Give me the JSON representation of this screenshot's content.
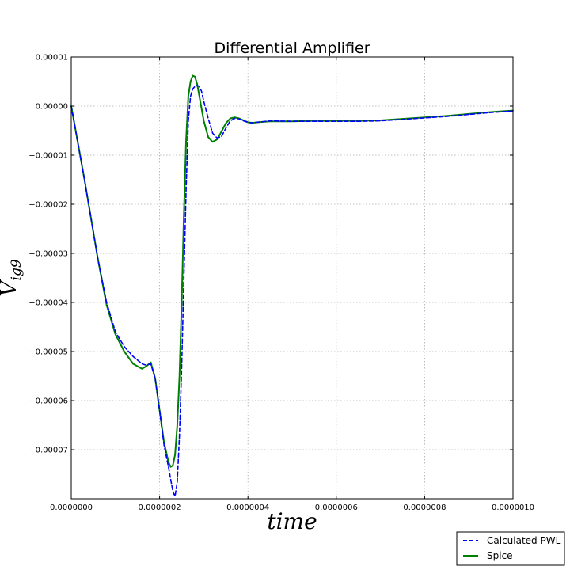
{
  "chart_data": {
    "type": "line",
    "title": "Differential Amplifier",
    "xlabel": "time",
    "ylabel_main": "V",
    "ylabel_sub": "ig9",
    "xlim": [
      0,
      1e-06
    ],
    "ylim": [
      -8e-05,
      1e-05
    ],
    "x_ticks": [
      0,
      2e-07,
      4e-07,
      6e-07,
      8e-07,
      1e-06
    ],
    "x_tick_labels": [
      "0.0000000",
      "0.0000002",
      "0.0000004",
      "0.0000006",
      "0.0000008",
      "0.0000010"
    ],
    "y_ticks": [
      1e-05,
      0,
      -1e-05,
      -2e-05,
      -3e-05,
      -4e-05,
      -5e-05,
      -6e-05,
      -7e-05
    ],
    "y_tick_labels": [
      "0.00001",
      "0.00000",
      "−0.00001",
      "−0.00002",
      "−0.00003",
      "−0.00004",
      "−0.00005",
      "−0.00006",
      "−0.00007"
    ],
    "grid": true,
    "legend_position": "below-right",
    "series": [
      {
        "name": "Calculated PWL",
        "color": "#0000ff",
        "style": "dashed",
        "x": [
          0,
          3e-08,
          6e-08,
          8e-08,
          1e-07,
          1.2e-07,
          1.4e-07,
          1.6e-07,
          1.7e-07,
          1.8e-07,
          1.9e-07,
          2e-07,
          2.1e-07,
          2.2e-07,
          2.25e-07,
          2.3e-07,
          2.35e-07,
          2.4e-07,
          2.45e-07,
          2.5e-07,
          2.55e-07,
          2.6e-07,
          2.65e-07,
          2.7e-07,
          2.75e-07,
          2.8e-07,
          2.85e-07,
          2.9e-07,
          2.95e-07,
          3e-07,
          3.1e-07,
          3.2e-07,
          3.3e-07,
          3.4e-07,
          3.5e-07,
          3.6e-07,
          3.7e-07,
          3.8e-07,
          3.9e-07,
          4e-07,
          4.1e-07,
          4.2e-07,
          4.5e-07,
          5e-07,
          5.5e-07,
          6e-07,
          6.5e-07,
          7e-07,
          7.5e-07,
          8e-07,
          8.5e-07,
          9e-07,
          9.5e-07,
          1e-06
        ],
        "y": [
          0,
          -1.5e-05,
          -3.1e-05,
          -4e-05,
          -4.6e-05,
          -4.9e-05,
          -5.1e-05,
          -5.25e-05,
          -5.28e-05,
          -5.25e-05,
          -5.55e-05,
          -6.2e-05,
          -6.9e-05,
          -7.35e-05,
          -7.6e-05,
          -7.85e-05,
          -7.95e-05,
          -7.65e-05,
          -6.7e-05,
          -5.3e-05,
          -3.5e-05,
          -1.7e-05,
          -3e-06,
          2e-06,
          3.5e-06,
          4e-06,
          4.2e-06,
          4e-06,
          3e-06,
          1e-06,
          -2.5e-06,
          -5.5e-06,
          -6.5e-06,
          -6.2e-06,
          -4.5e-06,
          -3e-06,
          -2.5e-06,
          -2.6e-06,
          -3e-06,
          -3.3e-06,
          -3.4e-06,
          -3.3e-06,
          -3e-06,
          -3.1e-06,
          -3.1e-06,
          -3.1e-06,
          -3.1e-06,
          -3e-06,
          -2.7e-06,
          -2.4e-06,
          -2.1e-06,
          -1.7e-06,
          -1.3e-06,
          -1e-06
        ]
      },
      {
        "name": "Spice",
        "color": "#008000",
        "style": "solid",
        "x": [
          0,
          3e-08,
          6e-08,
          8e-08,
          1e-07,
          1.2e-07,
          1.4e-07,
          1.6e-07,
          1.7e-07,
          1.8e-07,
          1.9e-07,
          2e-07,
          2.1e-07,
          2.2e-07,
          2.25e-07,
          2.3e-07,
          2.35e-07,
          2.4e-07,
          2.45e-07,
          2.5e-07,
          2.55e-07,
          2.6e-07,
          2.65e-07,
          2.7e-07,
          2.75e-07,
          2.8e-07,
          2.85e-07,
          2.9e-07,
          2.95e-07,
          3e-07,
          3.1e-07,
          3.2e-07,
          3.3e-07,
          3.4e-07,
          3.5e-07,
          3.6e-07,
          3.7e-07,
          3.8e-07,
          3.9e-07,
          4e-07,
          4.1e-07,
          4.2e-07,
          4.5e-07,
          5e-07,
          5.5e-07,
          6e-07,
          6.5e-07,
          7e-07,
          7.5e-07,
          8e-07,
          8.5e-07,
          9e-07,
          9.5e-07,
          1e-06
        ],
        "y": [
          0,
          -1.5e-05,
          -3.1e-05,
          -4.05e-05,
          -4.65e-05,
          -5e-05,
          -5.25e-05,
          -5.35e-05,
          -5.3e-05,
          -5.22e-05,
          -5.55e-05,
          -6.2e-05,
          -6.85e-05,
          -7.25e-05,
          -7.35e-05,
          -7.32e-05,
          -7.1e-05,
          -6.5e-05,
          -5.5e-05,
          -4e-05,
          -2.2e-05,
          -7e-06,
          2e-06,
          5e-06,
          6.2e-06,
          6e-06,
          4.5e-06,
          2e-06,
          -5e-07,
          -3e-06,
          -6.3e-06,
          -7.3e-06,
          -6.8e-06,
          -5.2e-06,
          -3.5e-06,
          -2.5e-06,
          -2.3e-06,
          -2.5e-06,
          -2.9e-06,
          -3.3e-06,
          -3.4e-06,
          -3.3e-06,
          -3.1e-06,
          -3.1e-06,
          -3e-06,
          -3e-06,
          -3e-06,
          -2.9e-06,
          -2.6e-06,
          -2.3e-06,
          -2e-06,
          -1.6e-06,
          -1.2e-06,
          -9e-07
        ]
      }
    ]
  }
}
